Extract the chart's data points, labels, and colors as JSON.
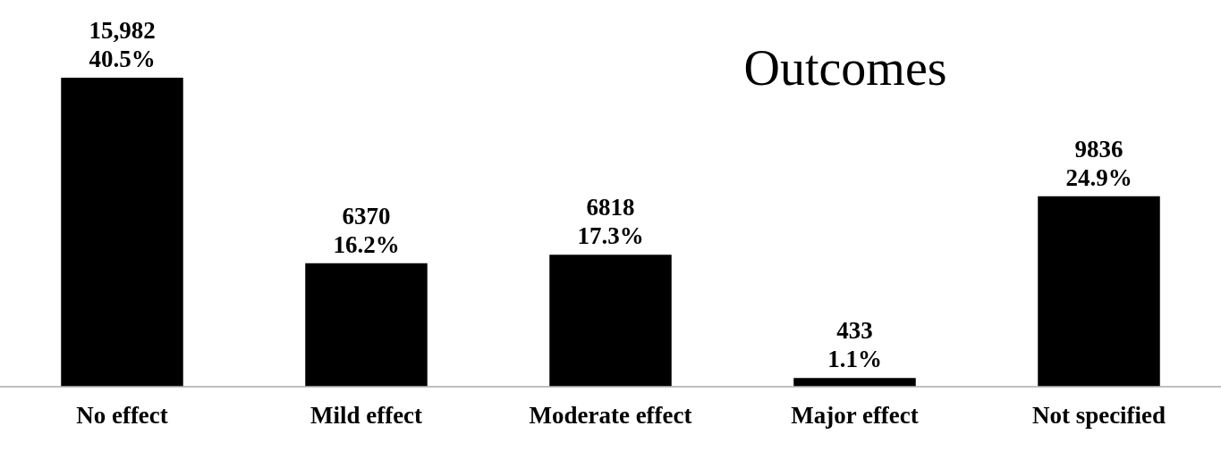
{
  "chart_data": {
    "type": "bar",
    "title": "Outcomes",
    "categories": [
      "No effect",
      "Mild effect",
      "Moderate effect",
      "Major effect",
      "Not specified"
    ],
    "values": [
      15982,
      6370,
      6818,
      433,
      9836
    ],
    "color": "#000000",
    "value_labels": [
      "15,982\n40.5%",
      "6370\n16.2%",
      "6818\n17.3%",
      "433\n1.1%",
      "9836\n24.9%"
    ],
    "grid": false,
    "legend": false
  }
}
